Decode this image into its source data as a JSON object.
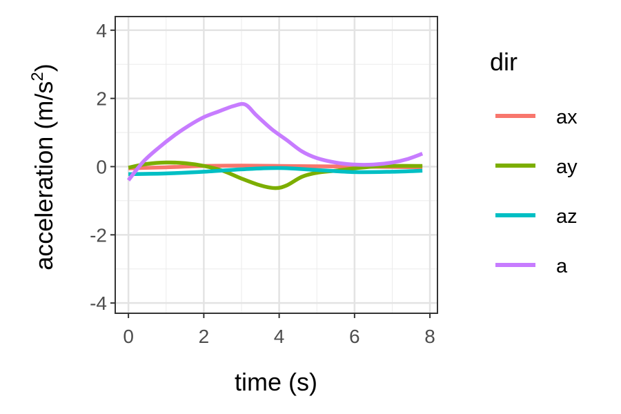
{
  "chart_data": {
    "type": "line",
    "xlabel": "time (s)",
    "ylabel_main": "acceleration (m/s",
    "ylabel_sup": "2",
    "ylabel_close": ")",
    "xlim": [
      -0.35,
      8.2
    ],
    "ylim": [
      -4.3,
      4.4
    ],
    "x_ticks": [
      0,
      2,
      4,
      6,
      8
    ],
    "x_tick_labels": [
      "0",
      "2",
      "4",
      "6",
      "8"
    ],
    "y_ticks": [
      -4,
      -2,
      0,
      2,
      4
    ],
    "y_tick_labels": [
      "-4",
      "-2",
      "0",
      "2",
      "4"
    ],
    "grid": true,
    "legend": {
      "title": "dir",
      "placement": "right"
    },
    "series": [
      {
        "name": "ax",
        "color": "#F8766D",
        "x": [
          0,
          1,
          2,
          3,
          4,
          5,
          6,
          7,
          7.8
        ],
        "y": [
          -0.05,
          -0.02,
          0.02,
          0.03,
          0.02,
          0.01,
          0.0,
          -0.01,
          -0.02
        ]
      },
      {
        "name": "ay",
        "color": "#7CAE00",
        "x": [
          0,
          0.5,
          1,
          1.5,
          2,
          2.5,
          3,
          3.5,
          3.9,
          4.2,
          4.6,
          5,
          5.5,
          6,
          6.5,
          7,
          7.8
        ],
        "y": [
          -0.03,
          0.08,
          0.12,
          0.1,
          0.02,
          -0.12,
          -0.35,
          -0.55,
          -0.63,
          -0.55,
          -0.3,
          -0.18,
          -0.12,
          -0.05,
          0.0,
          0.02,
          0.02
        ]
      },
      {
        "name": "az",
        "color": "#00BFC4",
        "x": [
          0,
          1,
          2,
          3,
          4,
          5,
          6,
          7,
          7.8
        ],
        "y": [
          -0.22,
          -0.2,
          -0.15,
          -0.08,
          -0.04,
          -0.1,
          -0.16,
          -0.15,
          -0.12
        ]
      },
      {
        "name": "a",
        "color": "#C77CFF",
        "x": [
          0,
          0.4,
          0.8,
          1.2,
          1.6,
          2,
          2.4,
          2.8,
          3.1,
          3.4,
          3.8,
          4.2,
          4.6,
          5,
          5.5,
          6,
          6.5,
          7,
          7.4,
          7.8
        ],
        "y": [
          -0.4,
          0.15,
          0.55,
          0.9,
          1.2,
          1.45,
          1.62,
          1.78,
          1.82,
          1.5,
          1.1,
          0.78,
          0.45,
          0.25,
          0.12,
          0.06,
          0.06,
          0.12,
          0.22,
          0.38
        ]
      }
    ]
  }
}
